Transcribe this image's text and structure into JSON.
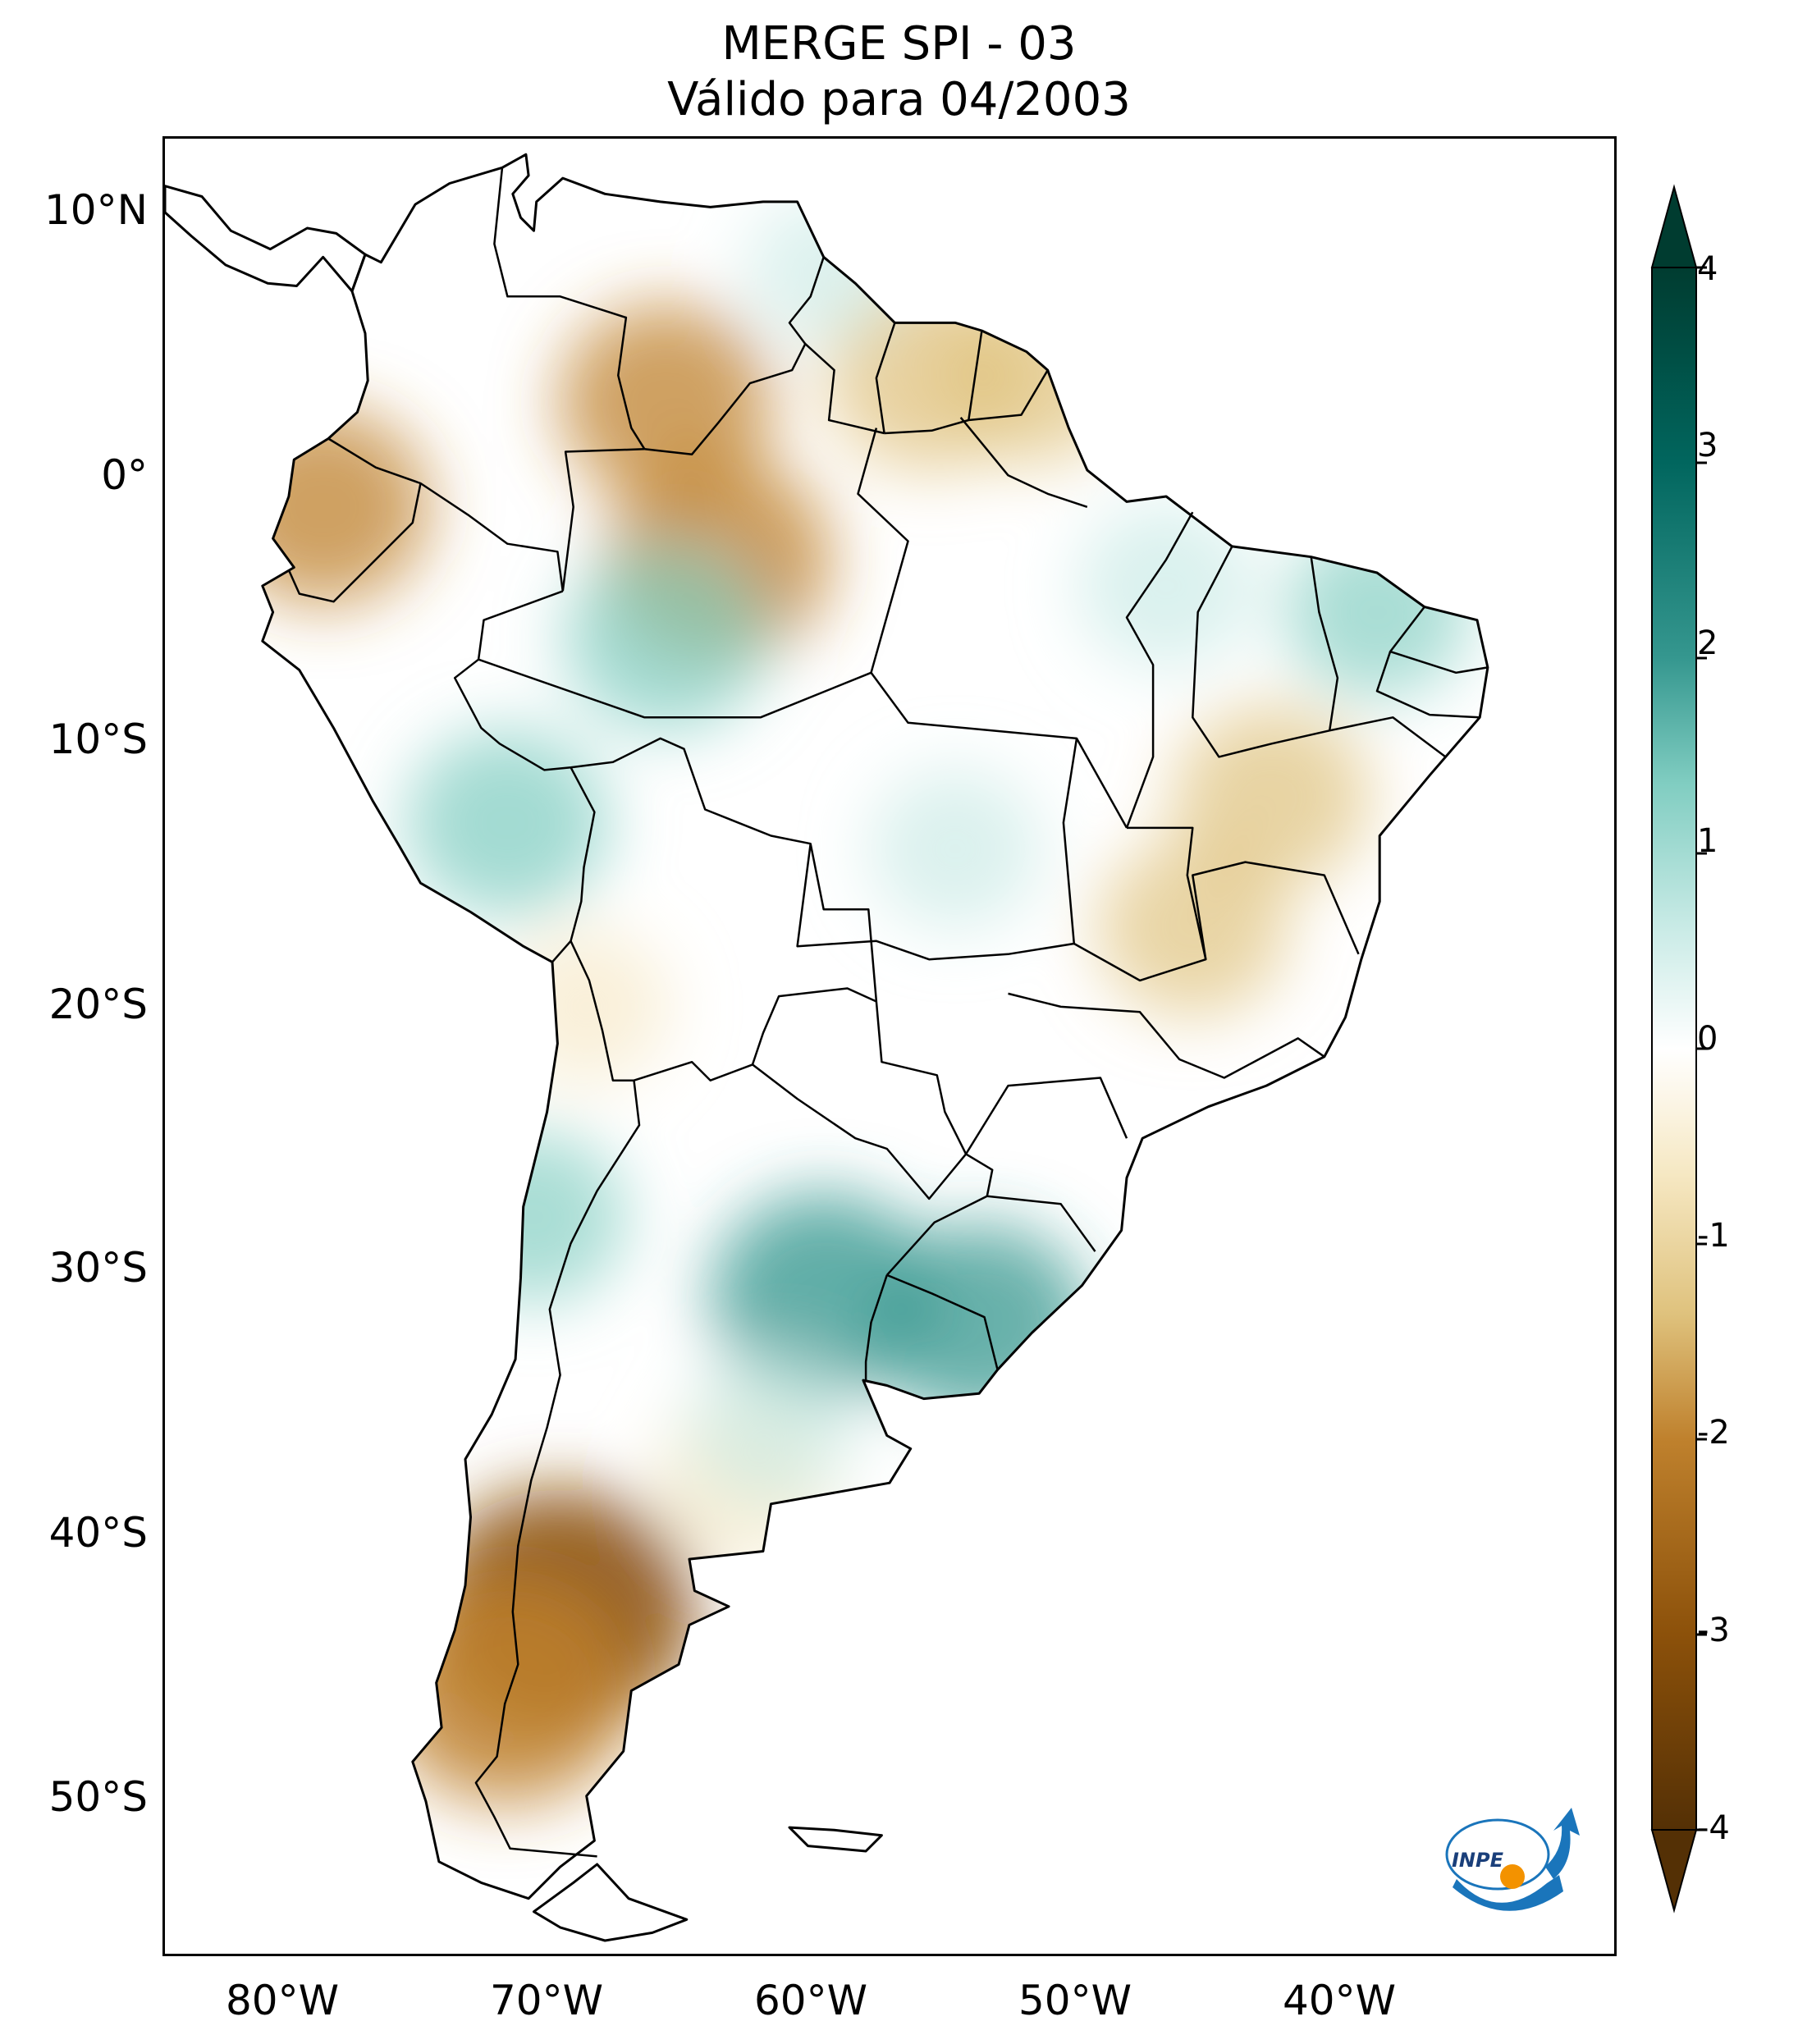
{
  "title": {
    "line1": "MERGE   SPI - 03",
    "line2": "Válido para 04/2003"
  },
  "map": {
    "extent": {
      "lon_min": -85,
      "lon_max": -30,
      "lat_min": -56,
      "lat_max": 13
    },
    "lat_ticks": [
      {
        "value": 10,
        "label": "10°N"
      },
      {
        "value": 0,
        "label": "0°"
      },
      {
        "value": -10,
        "label": "10°S"
      },
      {
        "value": -20,
        "label": "20°S"
      },
      {
        "value": -30,
        "label": "30°S"
      },
      {
        "value": -40,
        "label": "40°S"
      },
      {
        "value": -50,
        "label": "50°S"
      }
    ],
    "lon_ticks": [
      {
        "value": -80,
        "label": "80°W"
      },
      {
        "value": -70,
        "label": "70°W"
      },
      {
        "value": -60,
        "label": "60°W"
      },
      {
        "value": -50,
        "label": "50°W"
      },
      {
        "value": -40,
        "label": "40°W"
      }
    ],
    "spi_anomalies": [
      {
        "lon": -70,
        "lat": -43,
        "spi": -3.0
      },
      {
        "lon": -72,
        "lat": -46,
        "spi": -2.6
      },
      {
        "lon": -64,
        "lat": -3,
        "spi": -2.2
      },
      {
        "lon": -66,
        "lat": 3,
        "spi": -2.0
      },
      {
        "lon": -79,
        "lat": -1,
        "spi": -2.0
      },
      {
        "lon": -56,
        "lat": 4,
        "spi": -1.9
      },
      {
        "lon": -52,
        "lat": 4,
        "spi": -1.6
      },
      {
        "lon": -43,
        "lat": -12,
        "spi": -1.7
      },
      {
        "lon": -46,
        "lat": -17,
        "spi": -1.6
      },
      {
        "lon": -63,
        "lat": -38,
        "spi": -1.4
      },
      {
        "lon": -69,
        "lat": -20,
        "spi": -1.2
      },
      {
        "lon": -60,
        "lat": -31,
        "spi": 2.2
      },
      {
        "lon": -54,
        "lat": -32,
        "spi": 2.0
      },
      {
        "lon": -72,
        "lat": -13,
        "spi": 1.8
      },
      {
        "lon": -66,
        "lat": -6,
        "spi": 1.8
      },
      {
        "lon": -47,
        "lat": -4,
        "spi": 1.4
      },
      {
        "lon": -39,
        "lat": -5,
        "spi": 1.5
      },
      {
        "lon": -55,
        "lat": -14,
        "spi": 1.3
      },
      {
        "lon": -71,
        "lat": -28,
        "spi": 1.5
      },
      {
        "lon": -62,
        "lat": -36,
        "spi": 1.2
      },
      {
        "lon": -60,
        "lat": 8,
        "spi": 1.0
      }
    ]
  },
  "colorbar": {
    "min": -4,
    "max": 4,
    "extend": "both",
    "ticks": [
      {
        "value": 4,
        "label": "4"
      },
      {
        "value": 3,
        "label": "3"
      },
      {
        "value": 2,
        "label": "2"
      },
      {
        "value": 1,
        "label": "1"
      },
      {
        "value": 0,
        "label": "0"
      },
      {
        "value": -1,
        "label": "-1"
      },
      {
        "value": -2,
        "label": "-2"
      },
      {
        "value": -3,
        "label": "-3"
      },
      {
        "value": -4,
        "label": "-4"
      }
    ],
    "colors": {
      "dry_extreme": "#543005",
      "dry_strong": "#8c510a",
      "dry_moderate": "#bf812d",
      "dry_mild": "#dfc27d",
      "dry_weak": "#f6e8c3",
      "neutral": "#ffffff",
      "wet_weak": "#c7eae5",
      "wet_mild": "#80cdc1",
      "wet_moderate": "#35978f",
      "wet_strong": "#01665e",
      "wet_extreme": "#003c30"
    }
  },
  "logo": {
    "text": "INPE",
    "icon": "inpe-logo-icon"
  }
}
